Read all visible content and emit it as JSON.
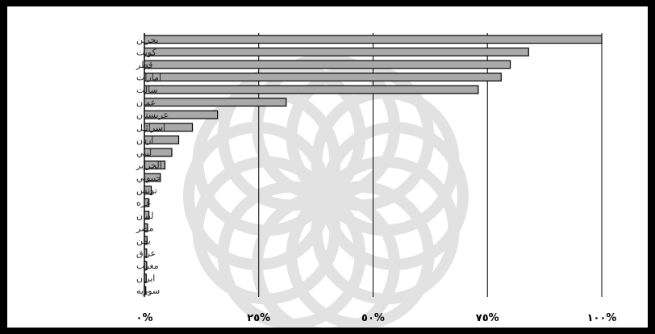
{
  "chart_data": {
    "type": "bar",
    "orientation": "horizontal",
    "categories": [
      "بحرين",
      "كويت",
      "قطر",
      "امارات",
      "سالت",
      "عمان",
      "عربستان",
      "اسرائيل",
      "اردن",
      "ليبي",
      "الجزاير",
      "جيبوتي",
      "تونس",
      "غزه",
      "لبنان",
      "مصر",
      "يمن",
      "عراق",
      "مغرب",
      "ايران",
      "سوريه"
    ],
    "values": [
      100,
      84,
      80,
      78,
      73,
      31,
      16,
      10.5,
      7.5,
      6,
      4.5,
      3.5,
      1.5,
      1,
      1,
      0.7,
      0.6,
      0.5,
      0.5,
      0.4,
      0.3
    ],
    "xlim": [
      0,
      100
    ],
    "xticks": [
      0,
      25,
      50,
      75,
      100
    ],
    "xtick_labels": [
      "٠%",
      "٢٥%",
      "٥٠%",
      "٧٥%",
      "١٠٠%"
    ],
    "grid": true,
    "bar_color": "#a9a9a9",
    "bar_edge": "#000000",
    "title": "",
    "xlabel": "",
    "ylabel": ""
  },
  "colors": {
    "background": "#ffffff",
    "frame": "#000000",
    "watermark": "#e2e2e2"
  }
}
